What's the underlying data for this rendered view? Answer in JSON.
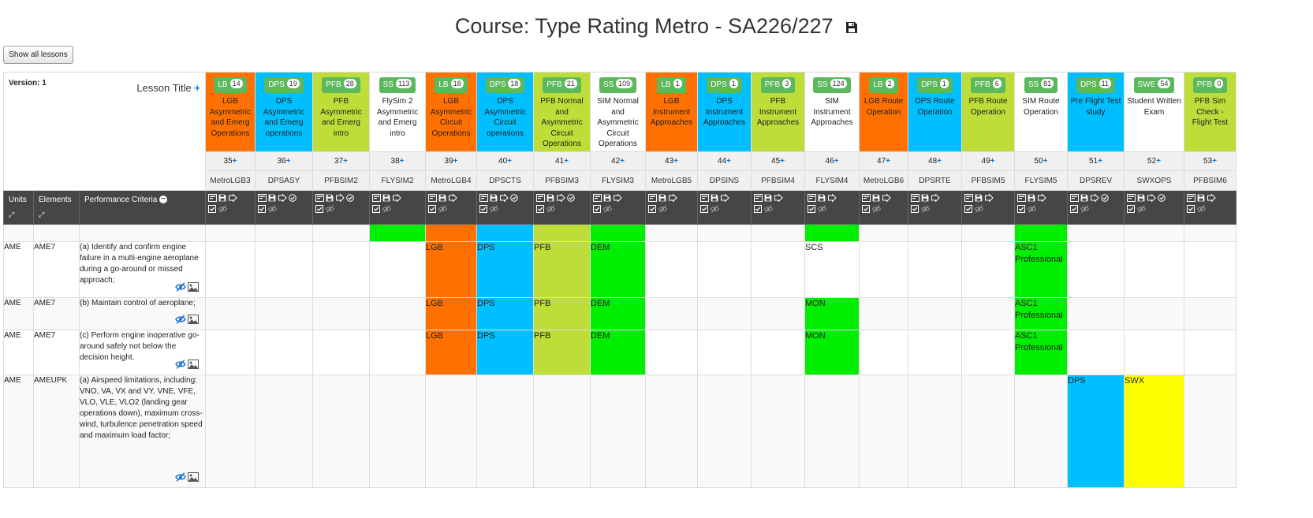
{
  "page": {
    "title": "Course: Type Rating Metro - SA226/227",
    "show_all_label": "Show all lessons",
    "version_label": "Version: 1",
    "lesson_title_label": "Lesson Title"
  },
  "colors": {
    "LB": "#ff7000",
    "DPS": "#00bfff",
    "PFB": "#bedd38",
    "SS": "#ffffff",
    "SWE": "#ffffff",
    "green": "#00ee00",
    "yellow": "#ffff00",
    "header_dark": "#464646",
    "chip": "#5cb85c"
  },
  "header_cols": {
    "units": "Units",
    "elements": "Elements",
    "criteria": "Performance Criteria"
  },
  "lessons": [
    {
      "type": "LB",
      "count": "14",
      "title": "LGB Asymmetric and Emerg Operations",
      "num": "35",
      "code": "MetroLGB3",
      "icons": 3
    },
    {
      "type": "DPS",
      "count": "19",
      "title": "DPS Asymmetric and Emerg operations",
      "num": "36",
      "code": "DPSASY",
      "icons": 4
    },
    {
      "type": "PFB",
      "count": "28",
      "title": "PFB Asymmetric and Emerg intro",
      "num": "37",
      "code": "PFBSIM2",
      "icons": 4
    },
    {
      "type": "SS",
      "count": "113",
      "title": "FlySim 2 Asymmetric and Emerg intro",
      "num": "38",
      "code": "FLYSIM2",
      "icons": 3
    },
    {
      "type": "LB",
      "count": "18",
      "title": "LGB Asymmetric Circuit Operations",
      "num": "39",
      "code": "MetroLGB4",
      "icons": 3
    },
    {
      "type": "DPS",
      "count": "18",
      "title": "DPS Asymmetric Circuit operations",
      "num": "40",
      "code": "DPSCTS",
      "icons": 4
    },
    {
      "type": "PFB",
      "count": "21",
      "title": "PFB Normal and Asymmetric Circuit Operations",
      "num": "41",
      "code": "PFBSIM3",
      "icons": 4
    },
    {
      "type": "SS",
      "count": "109",
      "title": "SIM Normal and Asymmetric Circuit Operations",
      "num": "42",
      "code": "FLYSIM3",
      "icons": 3
    },
    {
      "type": "LB",
      "count": "1",
      "title": "LGB Instrument Approaches",
      "num": "43",
      "code": "MetroLGB5",
      "icons": 3
    },
    {
      "type": "DPS",
      "count": "1",
      "title": "DPS Instrument Approaches",
      "num": "44",
      "code": "DPSINS",
      "icons": 3
    },
    {
      "type": "PFB",
      "count": "3",
      "title": "PFB Instrument Approaches",
      "num": "45",
      "code": "PFBSIM4",
      "icons": 3
    },
    {
      "type": "SS",
      "count": "124",
      "title": "SIM Instrument Approaches",
      "num": "46",
      "code": "FLYSIM4",
      "icons": 3
    },
    {
      "type": "LB",
      "count": "2",
      "title": "LGB Route Operation",
      "num": "47",
      "code": "MetroLGB6",
      "icons": 3
    },
    {
      "type": "DPS",
      "count": "1",
      "title": "DPS Route Operation",
      "num": "48",
      "code": "DPSRTE",
      "icons": 3
    },
    {
      "type": "PFB",
      "count": "6",
      "title": "PFB Route Operation",
      "num": "49",
      "code": "PFBSIM5",
      "icons": 3
    },
    {
      "type": "SS",
      "count": "81",
      "title": "SIM Route Operation",
      "num": "50",
      "code": "FLYSIM5",
      "icons": 3
    },
    {
      "type": "DPS",
      "count": "11",
      "title": "Pre Flight Test study",
      "num": "51",
      "code": "DPSREV",
      "icons": 4
    },
    {
      "type": "SWE",
      "count": "54",
      "title": "Student Written Exam",
      "num": "52",
      "code": "SWXOPS",
      "icons": 4
    },
    {
      "type": "PFB",
      "count": "0",
      "title": "PFB Sim Check - Flight Test",
      "num": "53",
      "code": "PFBSIM6",
      "icons": 3
    }
  ],
  "rows": [
    {
      "unit": "",
      "element": "",
      "criteria": "",
      "actions": false,
      "cells": [
        null,
        null,
        null,
        {
          "fill": "green",
          "text": ""
        },
        {
          "fill": "LB",
          "text": ""
        },
        {
          "fill": "DPS",
          "text": ""
        },
        {
          "fill": "PFB",
          "text": ""
        },
        {
          "fill": "green",
          "text": ""
        },
        null,
        null,
        null,
        {
          "fill": "green",
          "text": ""
        },
        null,
        null,
        null,
        {
          "fill": "green",
          "text": ""
        },
        null,
        null,
        null
      ]
    },
    {
      "unit": "AME",
      "element": "AME7",
      "criteria": "(a) Identify and confirm engine failure in a multi-engine aeroplane during a go-around or missed approach;",
      "actions": true,
      "cells": [
        null,
        null,
        null,
        null,
        {
          "fill": "LB",
          "text": "LGB"
        },
        {
          "fill": "DPS",
          "text": "DPS"
        },
        {
          "fill": "PFB",
          "text": "PFB"
        },
        {
          "fill": "green",
          "text": "DEM"
        },
        null,
        null,
        null,
        {
          "fill": null,
          "text": "SCS"
        },
        null,
        null,
        null,
        {
          "fill": "green",
          "text": "ASC1 Professional"
        },
        null,
        null,
        null
      ]
    },
    {
      "unit": "AME",
      "element": "AME7",
      "criteria": "(b) Maintain control of aeroplane;",
      "actions": true,
      "cells": [
        null,
        null,
        null,
        null,
        {
          "fill": "LB",
          "text": "LGB"
        },
        {
          "fill": "DPS",
          "text": "DPS"
        },
        {
          "fill": "PFB",
          "text": "PFB"
        },
        {
          "fill": "green",
          "text": "DEM"
        },
        null,
        null,
        null,
        {
          "fill": "green",
          "text": "MON"
        },
        null,
        null,
        null,
        {
          "fill": "green",
          "text": "ASC1 Professional"
        },
        null,
        null,
        null
      ]
    },
    {
      "unit": "AME",
      "element": "AME7",
      "criteria": "(c) Perform engine inoperative go-around safely not below the decision height.",
      "actions": true,
      "cells": [
        null,
        null,
        null,
        null,
        {
          "fill": "LB",
          "text": "LGB"
        },
        {
          "fill": "DPS",
          "text": "DPS"
        },
        {
          "fill": "PFB",
          "text": "PFB"
        },
        {
          "fill": "green",
          "text": "DEM"
        },
        null,
        null,
        null,
        {
          "fill": "green",
          "text": "MON"
        },
        null,
        null,
        null,
        {
          "fill": "green",
          "text": "ASC1 Professional"
        },
        null,
        null,
        null
      ]
    },
    {
      "unit": "AME",
      "element": "AMEUPK",
      "criteria": "(a) Airspeed limitations, including: VNO, VA, VX and VY, VNE, VFE, VLO, VLE, VLO2 (landing gear operations down), maximum cross-wind, turbulence penetration speed and maximum load factor;",
      "actions": true,
      "cells": [
        null,
        null,
        null,
        null,
        null,
        null,
        null,
        null,
        null,
        null,
        null,
        null,
        null,
        null,
        null,
        null,
        {
          "fill": "DPS",
          "text": "DPS"
        },
        {
          "fill": "yellow",
          "text": "SWX"
        },
        null
      ]
    }
  ]
}
